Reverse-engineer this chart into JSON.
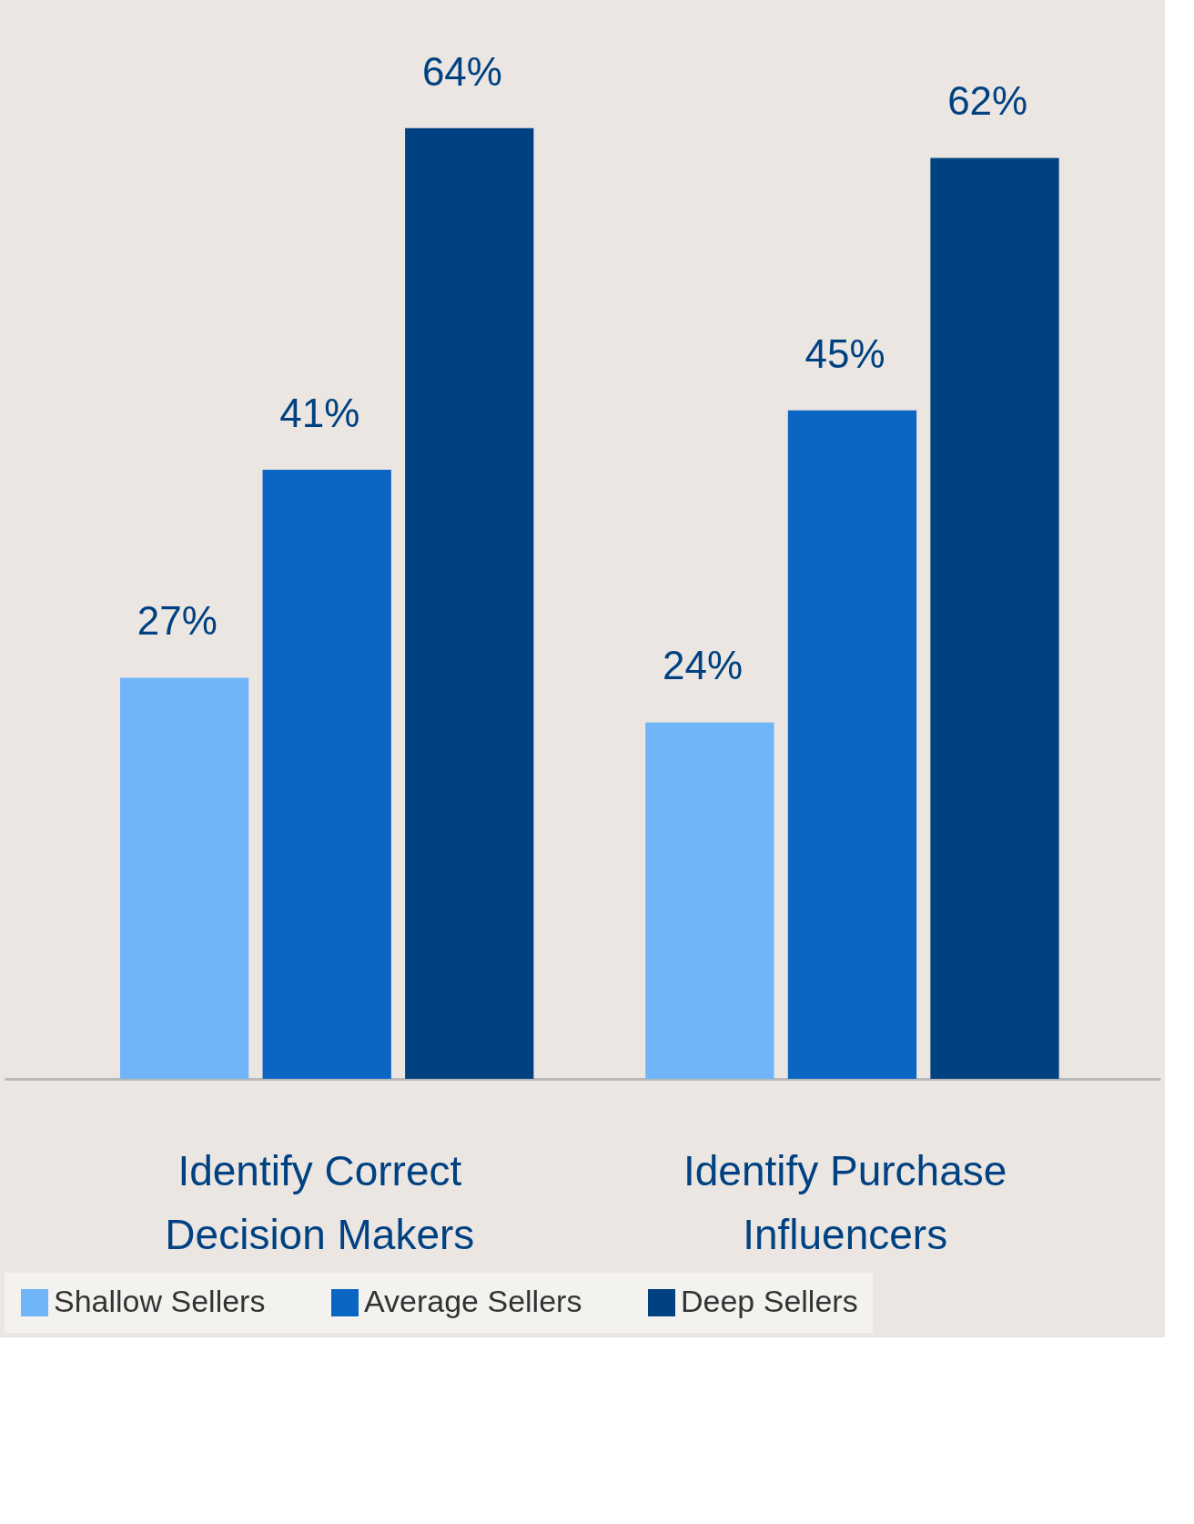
{
  "chart_data": {
    "type": "bar",
    "categories": [
      "Identify Correct Decision Makers",
      "Identify Purchase Influencers"
    ],
    "series": [
      {
        "name": "Shallow Sellers",
        "color": "#6fb5f7",
        "values": [
          27,
          24
        ],
        "value_labels": [
          "27%",
          "24%"
        ]
      },
      {
        "name": "Average Sellers",
        "color": "#0a66c2",
        "values": [
          41,
          45
        ],
        "value_labels": [
          "41%",
          "45%"
        ]
      },
      {
        "name": "Deep Sellers",
        "color": "#004182",
        "values": [
          64,
          62
        ],
        "value_labels": [
          "64%",
          "62%"
        ]
      }
    ],
    "legend": "bottom",
    "grid": false
  }
}
